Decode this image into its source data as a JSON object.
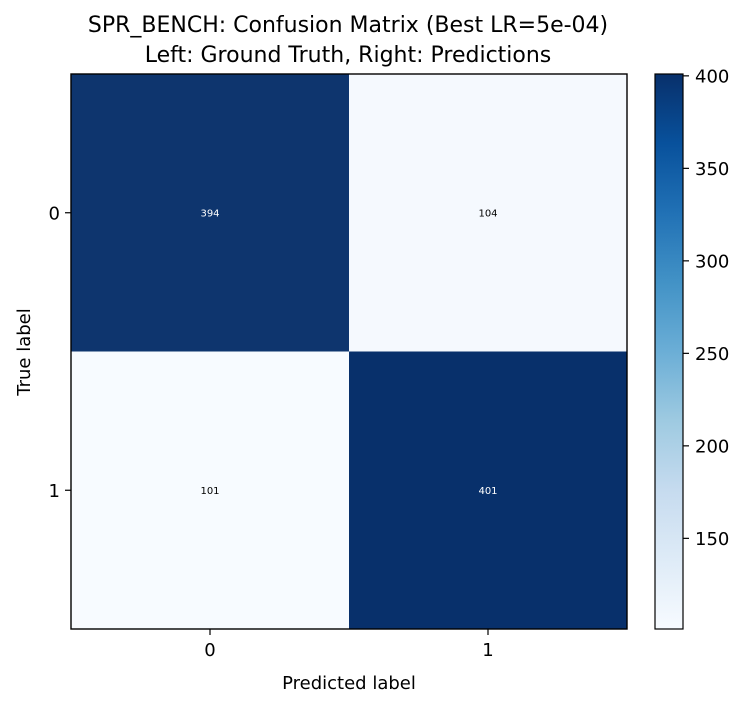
{
  "chart_data": {
    "type": "heatmap",
    "title": "SPR_BENCH: Confusion Matrix (Best LR=5e-04)",
    "subtitle": "Left: Ground Truth, Right: Predictions",
    "xlabel": "Predicted label",
    "ylabel": "True label",
    "x_categories": [
      "0",
      "1"
    ],
    "y_categories": [
      "0",
      "1"
    ],
    "matrix": [
      [
        394,
        104
      ],
      [
        101,
        401
      ]
    ],
    "cell_labels": [
      [
        "394",
        "104"
      ],
      [
        "101",
        "401"
      ]
    ],
    "colormap": "Blues",
    "color_low": "#f7fbff",
    "color_high": "#08306b",
    "vmin": 101,
    "vmax": 401,
    "colorbar_ticks": [
      "150",
      "200",
      "250",
      "300",
      "350",
      "400"
    ]
  }
}
